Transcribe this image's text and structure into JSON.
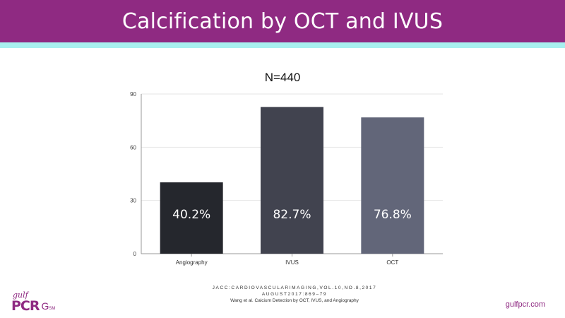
{
  "header": {
    "title": "Calcification by OCT and IVUS"
  },
  "chart_data": {
    "type": "bar",
    "title": "N=440",
    "categories": [
      "Angiography",
      "IVUS",
      "OCT"
    ],
    "values": [
      40.2,
      82.7,
      76.8
    ],
    "data_labels": [
      "40.2%",
      "82.7%",
      "76.8%"
    ],
    "yticks": [
      0,
      30,
      60,
      90
    ],
    "ylim": [
      0,
      90
    ],
    "xlabel": "",
    "ylabel": "",
    "grid": true,
    "colors": [
      "#25272d",
      "#41434f",
      "#626679"
    ]
  },
  "citation": {
    "line1": "JACC:CARDIOVASCULARIMAGING,VOL.10,NO.8,2017",
    "line2": "AUGUST2017:869–79",
    "line3": "Wang et al. Calcium Detection by OCT, IVUS, and Angiography"
  },
  "logo": {
    "top": "gulf",
    "main": "PCR",
    "mark": "G",
    "sup": "SM"
  },
  "site": "gulfpcr.com",
  "colors": {
    "header": "#8f2a82",
    "stripe": "#a8f0ef"
  }
}
